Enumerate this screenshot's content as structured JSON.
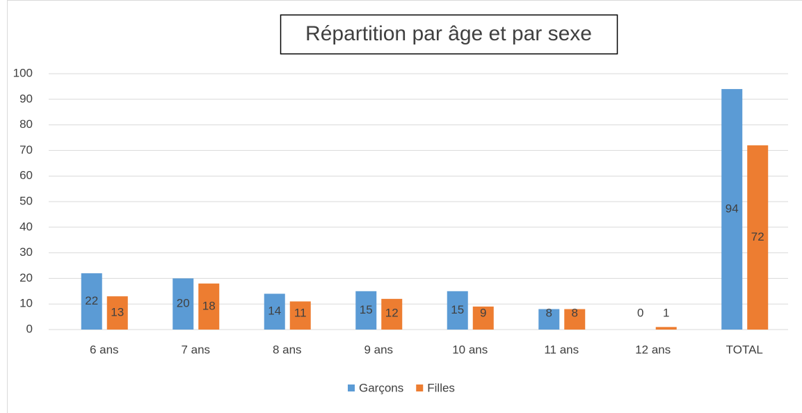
{
  "chart_data": {
    "type": "bar",
    "title": "Répartition par âge et par sexe",
    "categories": [
      "6 ans",
      "7 ans",
      "8 ans",
      "9 ans",
      "10 ans",
      "11 ans",
      "12 ans",
      "TOTAL"
    ],
    "series": [
      {
        "name": "Garçons",
        "color": "#5b9bd5",
        "values": [
          22,
          20,
          14,
          15,
          15,
          8,
          0,
          94
        ]
      },
      {
        "name": "Filles",
        "color": "#ed7d31",
        "values": [
          13,
          18,
          11,
          12,
          9,
          8,
          1,
          72
        ]
      }
    ],
    "ylim": [
      0,
      100
    ],
    "yticks": [
      0,
      10,
      20,
      30,
      40,
      50,
      60,
      70,
      80,
      90,
      100
    ],
    "grid": true,
    "legend": "bottom"
  }
}
